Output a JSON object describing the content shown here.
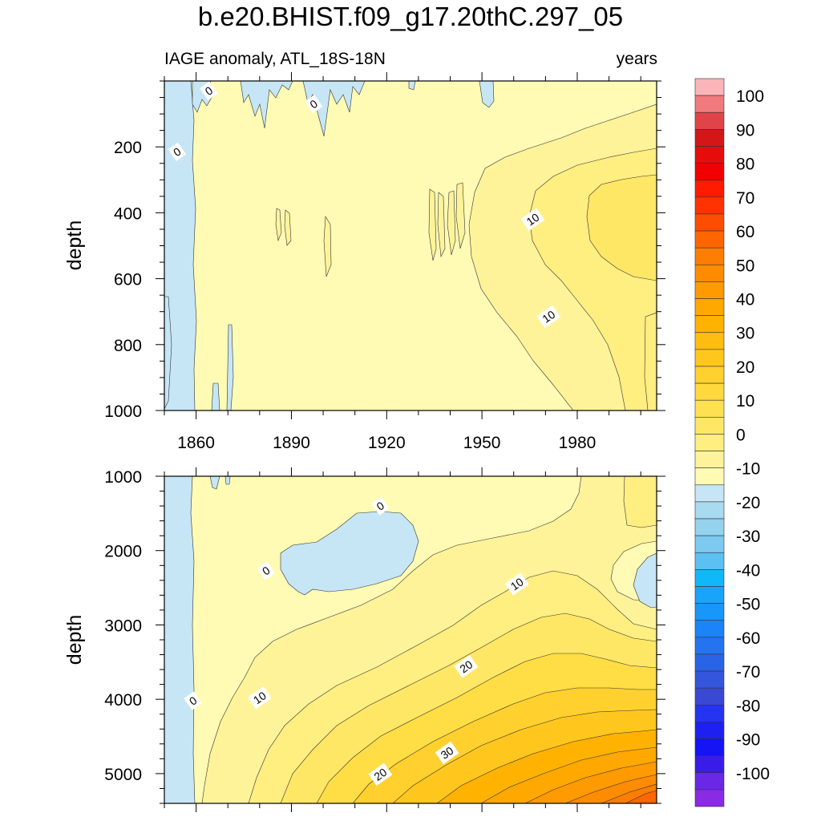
{
  "title": "b.e20.BHIST.f09_g17.20thC.297_05",
  "subtitle_left": "IAGE anomaly, ATL_18S-18N",
  "subtitle_right": "years",
  "chart_data": [
    {
      "type": "contour",
      "panel": "upper",
      "ylabel": "depth",
      "xlim": [
        1850,
        2005
      ],
      "ylim": [
        0,
        1000
      ],
      "x_ticks": [
        1860,
        1890,
        1920,
        1950,
        1980
      ],
      "y_ticks": [
        200,
        400,
        600,
        800,
        1000
      ],
      "contour_labels": [
        {
          "text": "0",
          "x": 1864,
          "y": 30
        },
        {
          "text": "0",
          "x": 1897,
          "y": 70
        },
        {
          "text": "0",
          "x": 1854,
          "y": 215
        },
        {
          "text": "10",
          "x": 1966,
          "y": 420
        },
        {
          "text": "10",
          "x": 1971,
          "y": 715
        }
      ]
    },
    {
      "type": "contour",
      "panel": "lower",
      "ylabel": "depth",
      "xlim": [
        1850,
        2005
      ],
      "ylim": [
        1000,
        5400
      ],
      "y_ticks": [
        1000,
        2000,
        3000,
        4000,
        5000
      ],
      "contour_labels": [
        {
          "text": "0",
          "x": 1918,
          "y": 1400
        },
        {
          "text": "0",
          "x": 1882,
          "y": 2270
        },
        {
          "text": "10",
          "x": 1961,
          "y": 2450
        },
        {
          "text": "20",
          "x": 1945,
          "y": 3560
        },
        {
          "text": "10",
          "x": 1880,
          "y": 3980
        },
        {
          "text": "0",
          "x": 1859,
          "y": 4020
        },
        {
          "text": "30",
          "x": 1939,
          "y": 4720
        },
        {
          "text": "20",
          "x": 1918,
          "y": 5010
        }
      ]
    }
  ],
  "colorbar": {
    "labels": [
      "100",
      "90",
      "80",
      "70",
      "60",
      "50",
      "40",
      "30",
      "20",
      "10",
      "0",
      "-10",
      "-20",
      "-30",
      "-40",
      "-50",
      "-60",
      "-70",
      "-80",
      "-90",
      "-100"
    ],
    "colors": [
      "#fbb4b8",
      "#f07a7d",
      "#e04448",
      "#d41616",
      "#e60c0c",
      "#f00000",
      "#ff1a00",
      "#ff3300",
      "#ff4d00",
      "#ff6600",
      "#ff7d00",
      "#ff8c00",
      "#ff9a00",
      "#ffa800",
      "#ffb300",
      "#ffbd10",
      "#ffc71e",
      "#ffd02e",
      "#ffd93e",
      "#ffe050",
      "#ffe766",
      "#ffee80",
      "#fff39a",
      "#fffab4",
      "#c6e6f6",
      "#a8daf0",
      "#94d2ee",
      "#7ccaef",
      "#5cc0f2",
      "#10b8fa",
      "#18a4fa",
      "#1896fa",
      "#1a84f8",
      "#2474f0",
      "#2a64e6",
      "#3456dc",
      "#3a48d4",
      "#2434f0",
      "#1e20f2",
      "#1414f4",
      "#3a1ce8",
      "#6a28e6",
      "#8a2ae4"
    ]
  },
  "palette": {
    "cyan": "#c6e6f6",
    "pale": "#fffab4",
    "yellow": "#fff39a",
    "level3": "#ffee80",
    "level4": "#ffe766",
    "level5": "#ffdd44",
    "level6": "#ffd02e",
    "level7": "#ffc71e",
    "level8": "#ffb300",
    "level9": "#ffa800",
    "level10": "#ff9a00",
    "level11": "#ff8c00",
    "level12": "#ff7d00",
    "level13": "#ff6600",
    "level14": "#ff4d00"
  }
}
